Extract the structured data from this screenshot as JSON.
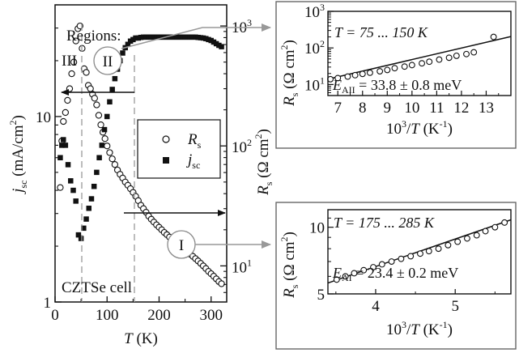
{
  "figure": {
    "regions_label": "Regions:",
    "region_I": "I",
    "region_II": "II",
    "region_III": "III",
    "sample_label": "CZTSe cell"
  },
  "main": {
    "x_label_var": "T",
    "x_label_unit": " (K)",
    "left_label": {
      "var": "j",
      "sub": "sc",
      "unit": " (mA/cm",
      "sup": "2",
      "close": ")"
    },
    "right_label": {
      "var": "R",
      "sub": "s",
      "unit": " (Ω cm",
      "sup": "2",
      "close": ")"
    },
    "legend": [
      {
        "var": "R",
        "sub": "s",
        "marker": "open-circle"
      },
      {
        "var": "j",
        "sub": "sc",
        "marker": "filled-square"
      }
    ],
    "arrows": [
      {
        "direction": "left",
        "axis": "left",
        "series": "jsc"
      },
      {
        "direction": "right",
        "axis": "right",
        "series": "Rs"
      }
    ],
    "region_boundaries_K": [
      47,
      150
    ]
  },
  "inset_top": {
    "fit_text": "T = 75 ... 150 K",
    "energy_var": "E",
    "energy_sub": "AII",
    "energy_value": " = 33.8 ± 0.8 meV",
    "x_label": {
      "base": "10",
      "sup": "3",
      "mid": "/",
      "var": "T",
      "unit": " (K",
      "sup2": "-1",
      "close": ")"
    },
    "y_label": {
      "var": "R",
      "sub": "s",
      "unit": " (Ω cm",
      "sup": "2",
      "close": ")"
    }
  },
  "inset_bottom": {
    "fit_text": "T = 175 ... 285 K",
    "energy_var": "E",
    "energy_sub": "AI",
    "energy_value": " = 23.4 ± 0.2 meV",
    "x_label": {
      "base": "10",
      "sup": "3",
      "mid": "/",
      "var": "T",
      "unit": " (K",
      "sup2": "-1",
      "close": ")"
    },
    "y_label": {
      "var": "R",
      "sub": "s",
      "unit": " (Ω cm",
      "sup": "2",
      "close": ")"
    }
  },
  "colors": {
    "axes": "#111111",
    "guide": "#999999",
    "callout": "#999999",
    "frame": "#666666"
  },
  "chart_data": [
    {
      "type": "scatter",
      "x_axis": {
        "quantity": "T",
        "unit": "K",
        "range": [
          0,
          330
        ],
        "ticks": [
          0,
          100,
          200,
          300
        ]
      },
      "y_left": {
        "quantity": "jsc",
        "unit": "mA/cm2",
        "scale": "log",
        "range": [
          1,
          40
        ],
        "ticks": [
          1,
          10
        ],
        "tick_labels": [
          "1",
          "10"
        ]
      },
      "y_right": {
        "quantity": "Rs",
        "unit": "Ω cm2",
        "scale": "log",
        "range": [
          5,
          1500
        ],
        "ticks": [
          10,
          100,
          1000
        ],
        "tick_labels": [
          "10",
          "10",
          "10"
        ],
        "tick_sups": [
          "1",
          "2",
          "3"
        ]
      },
      "series": [
        {
          "name": "Rs",
          "axis": "right",
          "marker": "open-circle",
          "x": [
            10,
            13,
            16,
            20,
            24,
            28,
            32,
            36,
            40,
            44,
            48,
            52,
            56,
            60,
            64,
            68,
            72,
            76,
            80,
            84,
            88,
            92,
            96,
            100,
            105,
            110,
            115,
            120,
            125,
            130,
            135,
            140,
            145,
            150,
            155,
            160,
            165,
            170,
            175,
            180,
            185,
            190,
            195,
            200,
            205,
            210,
            215,
            220,
            225,
            230,
            235,
            240,
            245,
            250,
            255,
            260,
            265,
            270,
            275,
            280,
            285,
            290,
            295,
            300,
            305,
            310,
            315,
            320
          ],
          "y": [
            45,
            110,
            160,
            190,
            240,
            300,
            400,
            500,
            750,
            950,
            1000,
            650,
            440,
            410,
            320,
            300,
            270,
            250,
            220,
            180,
            150,
            130,
            115,
            100,
            88,
            78,
            70,
            63,
            58,
            54,
            50,
            47,
            44,
            41,
            38,
            35,
            32,
            30,
            28,
            26,
            24.5,
            23.2,
            22,
            21,
            20,
            19,
            18.2,
            17.4,
            16.7,
            16,
            15.4,
            14.8,
            14.2,
            13.6,
            13,
            12.5,
            12,
            11.5,
            11,
            10.5,
            10,
            9.5,
            9,
            8.6,
            8.2,
            7.8,
            7.4,
            7.1
          ]
        },
        {
          "name": "jsc",
          "axis": "left",
          "marker": "filled-square",
          "x": [
            10,
            13,
            16,
            20,
            25,
            30,
            35,
            40,
            45,
            50,
            55,
            60,
            65,
            70,
            75,
            80,
            85,
            90,
            95,
            100,
            105,
            110,
            115,
            120,
            125,
            130,
            135,
            140,
            145,
            150,
            155,
            160,
            165,
            170,
            175,
            180,
            185,
            190,
            195,
            200,
            205,
            210,
            215,
            220,
            225,
            230,
            235,
            240,
            245,
            250,
            255,
            260,
            265,
            270,
            275,
            280,
            285,
            290,
            295,
            300,
            305,
            310,
            315,
            320
          ],
          "y": [
            6,
            7,
            7.5,
            7,
            5.5,
            4.5,
            4,
            3.5,
            2.3,
            2.2,
            2.5,
            2.8,
            3.2,
            3.6,
            4.2,
            5,
            6,
            7,
            8.5,
            10,
            12,
            14,
            16,
            18,
            20,
            22,
            23.5,
            24.5,
            25.5,
            26,
            26.5,
            26.5,
            26.7,
            26.8,
            26.8,
            26.8,
            26.8,
            26.8,
            26.8,
            26.8,
            26.8,
            26.8,
            26.8,
            26.8,
            26.8,
            26.8,
            26.8,
            26.8,
            26.8,
            26.8,
            26.8,
            26.8,
            26.8,
            26.8,
            26.7,
            26.6,
            26.5,
            26.3,
            26,
            25.7,
            25.2,
            24.7,
            24.2,
            23.8
          ]
        }
      ]
    },
    {
      "type": "scatter",
      "x_axis": {
        "quantity": "10^3/T",
        "unit": "K^-1",
        "range": [
          6.6,
          14
        ],
        "ticks": [
          7,
          8,
          9,
          10,
          11,
          12,
          13
        ]
      },
      "y_axis": {
        "quantity": "Rs",
        "unit": "Ω cm2",
        "scale": "log",
        "range": [
          5,
          1000
        ],
        "ticks": [
          10,
          100,
          1000
        ],
        "tick_labels": [
          "10",
          "10",
          "10"
        ],
        "tick_sups": [
          "1",
          "2",
          "3"
        ]
      },
      "series": [
        {
          "name": "Rs",
          "marker": "open-circle",
          "x": [
            6.7,
            7.0,
            7.4,
            7.7,
            8.0,
            8.3,
            8.7,
            9.0,
            9.3,
            9.7,
            10.0,
            10.4,
            10.7,
            11.1,
            11.5,
            11.8,
            12.2,
            12.5,
            13.3
          ],
          "y": [
            14,
            15,
            16.5,
            18,
            19.5,
            21,
            23,
            25,
            28,
            31,
            34,
            38,
            42,
            48,
            54,
            61,
            68,
            76,
            200
          ]
        },
        {
          "name": "fit",
          "line": true,
          "x": [
            6.6,
            14
          ],
          "y": [
            14,
            205
          ]
        }
      ]
    },
    {
      "type": "scatter",
      "x_axis": {
        "quantity": "10^3/T",
        "unit": "K^-1",
        "range": [
          3.4,
          5.7
        ],
        "ticks": [
          4,
          5
        ]
      },
      "y_axis": {
        "quantity": "Rs",
        "unit": "Ω cm2",
        "scale": "log",
        "range": [
          5,
          12
        ],
        "ticks": [
          5,
          10
        ],
        "tick_labels": [
          "5",
          "10"
        ]
      },
      "series": [
        {
          "name": "Rs",
          "marker": "open-circle",
          "x": [
            3.51,
            3.62,
            3.73,
            3.85,
            3.97,
            4.08,
            4.2,
            4.32,
            4.44,
            4.56,
            4.67,
            4.79,
            4.91,
            5.03,
            5.15,
            5.27,
            5.38,
            5.5,
            5.62
          ],
          "y": [
            5.8,
            6.0,
            6.2,
            6.4,
            6.6,
            6.8,
            7.0,
            7.2,
            7.4,
            7.6,
            7.8,
            8.0,
            8.3,
            8.6,
            8.9,
            9.2,
            9.6,
            10.0,
            10.5
          ]
        },
        {
          "name": "fit",
          "line": true,
          "x": [
            3.4,
            5.7
          ],
          "y": [
            5.6,
            10.8
          ]
        }
      ]
    }
  ]
}
